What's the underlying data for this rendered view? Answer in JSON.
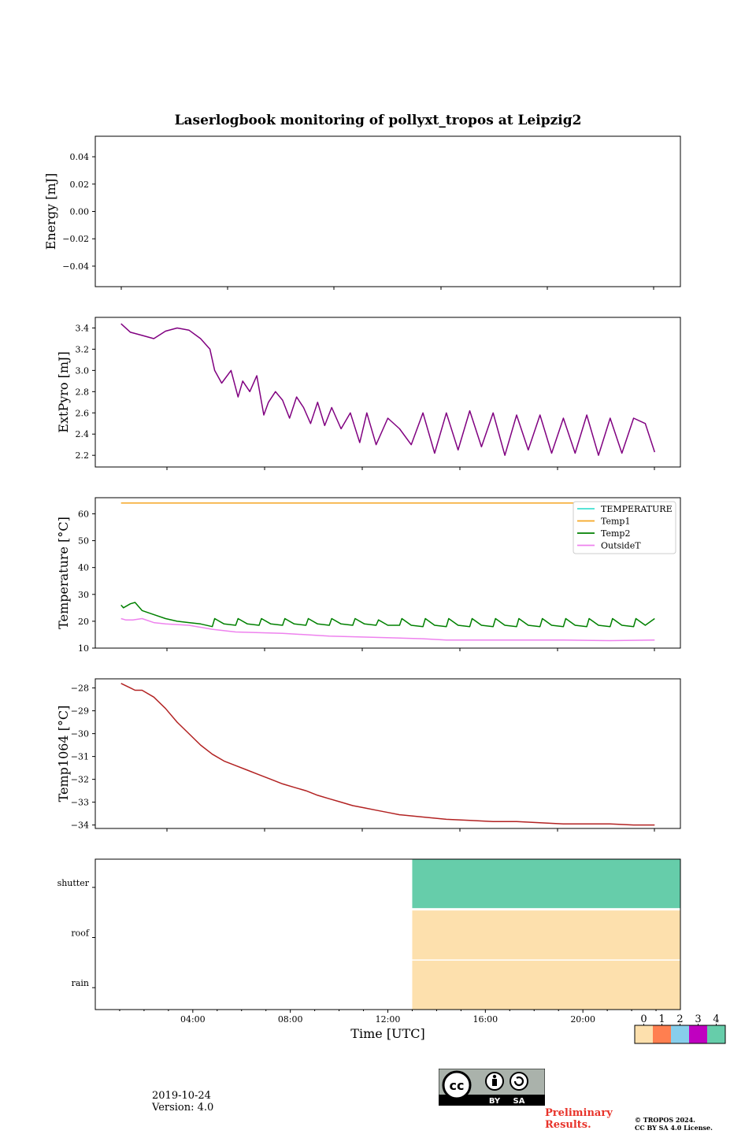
{
  "figure_title": "Laserlogbook monitoring of pollyxt_tropos at Leipzig2",
  "chart_data": [
    {
      "type": "line",
      "ylabel": "Energy [mJ]",
      "ylim": [
        -0.055,
        0.055
      ],
      "yticks": [
        0.04,
        0.02,
        0.0,
        -0.02,
        -0.04
      ],
      "ytick_labels": [
        "0.04",
        "0.02",
        "0.00",
        "−0.02",
        "−0.04"
      ],
      "series": []
    },
    {
      "type": "line",
      "ylabel": "ExtPyro [mJ]",
      "ylim": [
        2.09,
        3.5
      ],
      "yticks": [
        3.4,
        3.2,
        3.0,
        2.8,
        2.6,
        2.4,
        2.2
      ],
      "ytick_labels": [
        "3.4",
        "3.2",
        "3.0",
        "2.8",
        "2.6",
        "2.4",
        "2.2"
      ],
      "series": [
        {
          "name": "ExtPyro",
          "color": "#800080",
          "x": [
            1.1,
            1.5,
            2.0,
            2.5,
            3.0,
            3.5,
            4.0,
            4.5,
            4.9,
            5.1,
            5.4,
            5.8,
            6.1,
            6.3,
            6.6,
            6.9,
            7.2,
            7.4,
            7.7,
            8.0,
            8.3,
            8.6,
            8.9,
            9.2,
            9.5,
            9.8,
            10.1,
            10.5,
            10.9,
            11.3,
            11.6,
            12.0,
            12.5,
            13.0,
            13.5,
            14.0,
            14.5,
            15.0,
            15.5,
            16.0,
            16.5,
            17.0,
            17.5,
            18.0,
            18.5,
            19.0,
            19.5,
            20.0,
            20.5,
            21.0,
            21.5,
            22.0,
            22.5,
            23.0,
            23.5,
            23.9
          ],
          "y": [
            3.44,
            3.36,
            3.33,
            3.3,
            3.37,
            3.4,
            3.38,
            3.3,
            3.2,
            3.0,
            2.88,
            3.0,
            2.75,
            2.9,
            2.8,
            2.95,
            2.58,
            2.7,
            2.8,
            2.72,
            2.55,
            2.75,
            2.65,
            2.5,
            2.7,
            2.48,
            2.65,
            2.45,
            2.6,
            2.32,
            2.6,
            2.3,
            2.55,
            2.45,
            2.3,
            2.6,
            2.22,
            2.6,
            2.25,
            2.62,
            2.28,
            2.6,
            2.2,
            2.58,
            2.25,
            2.58,
            2.22,
            2.55,
            2.22,
            2.58,
            2.2,
            2.55,
            2.22,
            2.55,
            2.5,
            2.23
          ]
        }
      ]
    },
    {
      "type": "line",
      "ylabel": "Temperature [°C]",
      "ylim": [
        10,
        66
      ],
      "yticks": [
        60,
        50,
        40,
        30,
        20,
        10
      ],
      "ytick_labels": [
        "60",
        "50",
        "40",
        "30",
        "20",
        "10"
      ],
      "legend_position": "top-right",
      "series": [
        {
          "name": "TEMPERATURE",
          "color": "#40e0d0",
          "x": [],
          "y": []
        },
        {
          "name": "Temp1",
          "color": "#f5a623",
          "x": [
            1.1,
            23.9
          ],
          "y": [
            64,
            64
          ]
        },
        {
          "name": "Temp2",
          "color": "#008000",
          "x": [
            1.1,
            1.2,
            1.5,
            1.7,
            2.0,
            2.5,
            3.0,
            3.5,
            4.0,
            4.5,
            5.0,
            5.1,
            5.5,
            6.0,
            6.1,
            6.5,
            7.0,
            7.1,
            7.5,
            8.0,
            8.1,
            8.5,
            9.0,
            9.1,
            9.5,
            10.0,
            10.1,
            10.5,
            11.0,
            11.1,
            11.5,
            12.0,
            12.1,
            12.5,
            13.0,
            13.1,
            13.5,
            14.0,
            14.1,
            14.5,
            15.0,
            15.1,
            15.5,
            16.0,
            16.1,
            16.5,
            17.0,
            17.1,
            17.5,
            18.0,
            18.1,
            18.5,
            19.0,
            19.1,
            19.5,
            20.0,
            20.1,
            20.5,
            21.0,
            21.1,
            21.5,
            22.0,
            22.1,
            22.5,
            23.0,
            23.1,
            23.5,
            23.9
          ],
          "y": [
            26,
            25,
            26.5,
            27,
            24,
            22.5,
            21,
            20,
            19.5,
            19,
            18,
            21,
            19,
            18.5,
            21,
            19,
            18.5,
            21,
            19,
            18.5,
            21,
            19,
            18.5,
            21,
            19,
            18.5,
            21,
            19,
            18.5,
            21,
            19,
            18.5,
            20.5,
            18.5,
            18.5,
            21,
            18.5,
            18,
            21,
            18.5,
            18,
            21,
            18.5,
            18,
            21,
            18.5,
            18,
            21,
            18.5,
            18,
            21,
            18.5,
            18,
            21,
            18.5,
            18,
            21,
            18.5,
            18,
            21,
            18.5,
            18,
            21,
            18.5,
            18,
            21,
            18.5,
            21
          ]
        },
        {
          "name": "OutsideT",
          "color": "#ee82ee",
          "x": [
            1.1,
            1.3,
            1.6,
            2.0,
            2.5,
            3.0,
            4.0,
            5.0,
            6.0,
            8.0,
            10.0,
            12.0,
            14.0,
            15.0,
            16.0,
            18.0,
            20.0,
            22.0,
            23.9
          ],
          "y": [
            21,
            20.5,
            20.5,
            21,
            19.5,
            19,
            18.5,
            17,
            16,
            15.5,
            14.5,
            14,
            13.5,
            13,
            13,
            13,
            13,
            12.8,
            13
          ]
        }
      ]
    },
    {
      "type": "line",
      "ylabel": "Temp1064 [°C]",
      "ylim": [
        -34.15,
        -27.6
      ],
      "yticks": [
        -28,
        -29,
        -30,
        -31,
        -32,
        -33,
        -34
      ],
      "ytick_labels": [
        "−28",
        "−29",
        "−30",
        "−31",
        "−32",
        "−33",
        "−34"
      ],
      "series": [
        {
          "name": "Temp1064",
          "color": "#b22222",
          "x": [
            1.1,
            1.3,
            1.5,
            1.7,
            2.0,
            2.5,
            3.0,
            3.5,
            4.0,
            4.5,
            5.0,
            5.5,
            6.0,
            6.5,
            7.0,
            7.5,
            8.0,
            8.5,
            9.0,
            9.5,
            10.0,
            10.5,
            11.0,
            11.5,
            12.0,
            12.5,
            13.0,
            14.0,
            15.0,
            16.0,
            17.0,
            18.0,
            19.0,
            20.0,
            21.0,
            22.0,
            23.0,
            23.9
          ],
          "y": [
            -27.8,
            -27.9,
            -28.0,
            -28.1,
            -28.1,
            -28.4,
            -28.9,
            -29.5,
            -30.0,
            -30.5,
            -30.9,
            -31.2,
            -31.4,
            -31.6,
            -31.8,
            -32.0,
            -32.2,
            -32.35,
            -32.5,
            -32.7,
            -32.85,
            -33.0,
            -33.15,
            -33.25,
            -33.35,
            -33.45,
            -33.55,
            -33.65,
            -33.75,
            -33.8,
            -33.85,
            -33.85,
            -33.9,
            -33.95,
            -33.95,
            -33.95,
            -34.0,
            -34.0
          ]
        }
      ]
    },
    {
      "type": "heatmap",
      "xlabel": "Time [UTC]",
      "xlim": [
        0,
        24
      ],
      "xticks": [
        4,
        8,
        12,
        16,
        20
      ],
      "xtick_labels": [
        "04:00",
        "08:00",
        "12:00",
        "16:00",
        "20:00"
      ],
      "rows": [
        "shutter",
        "roof",
        "rain"
      ],
      "segments": [
        {
          "row": "shutter",
          "start": 13.0,
          "end": 24,
          "status": 4
        },
        {
          "row": "roof",
          "start": 13.0,
          "end": 24,
          "status": 0
        },
        {
          "row": "rain",
          "start": 13.0,
          "end": 24,
          "status": 0
        }
      ],
      "colorbar": {
        "labels": [
          "0",
          "1",
          "2",
          "3",
          "4"
        ],
        "colors": [
          "#fde0ad",
          "#ff7f50",
          "#87ceeb",
          "#c000c0",
          "#66cdaa"
        ]
      }
    }
  ],
  "footer": {
    "date": "2019-10-24",
    "version": "Version: 4.0",
    "preliminary": "Preliminary\nResults.",
    "copyright_line1": "© TROPOS 2024.",
    "copyright_line2": "CC BY SA 4.0 License.",
    "cc_by": "BY",
    "cc_sa": "SA"
  }
}
